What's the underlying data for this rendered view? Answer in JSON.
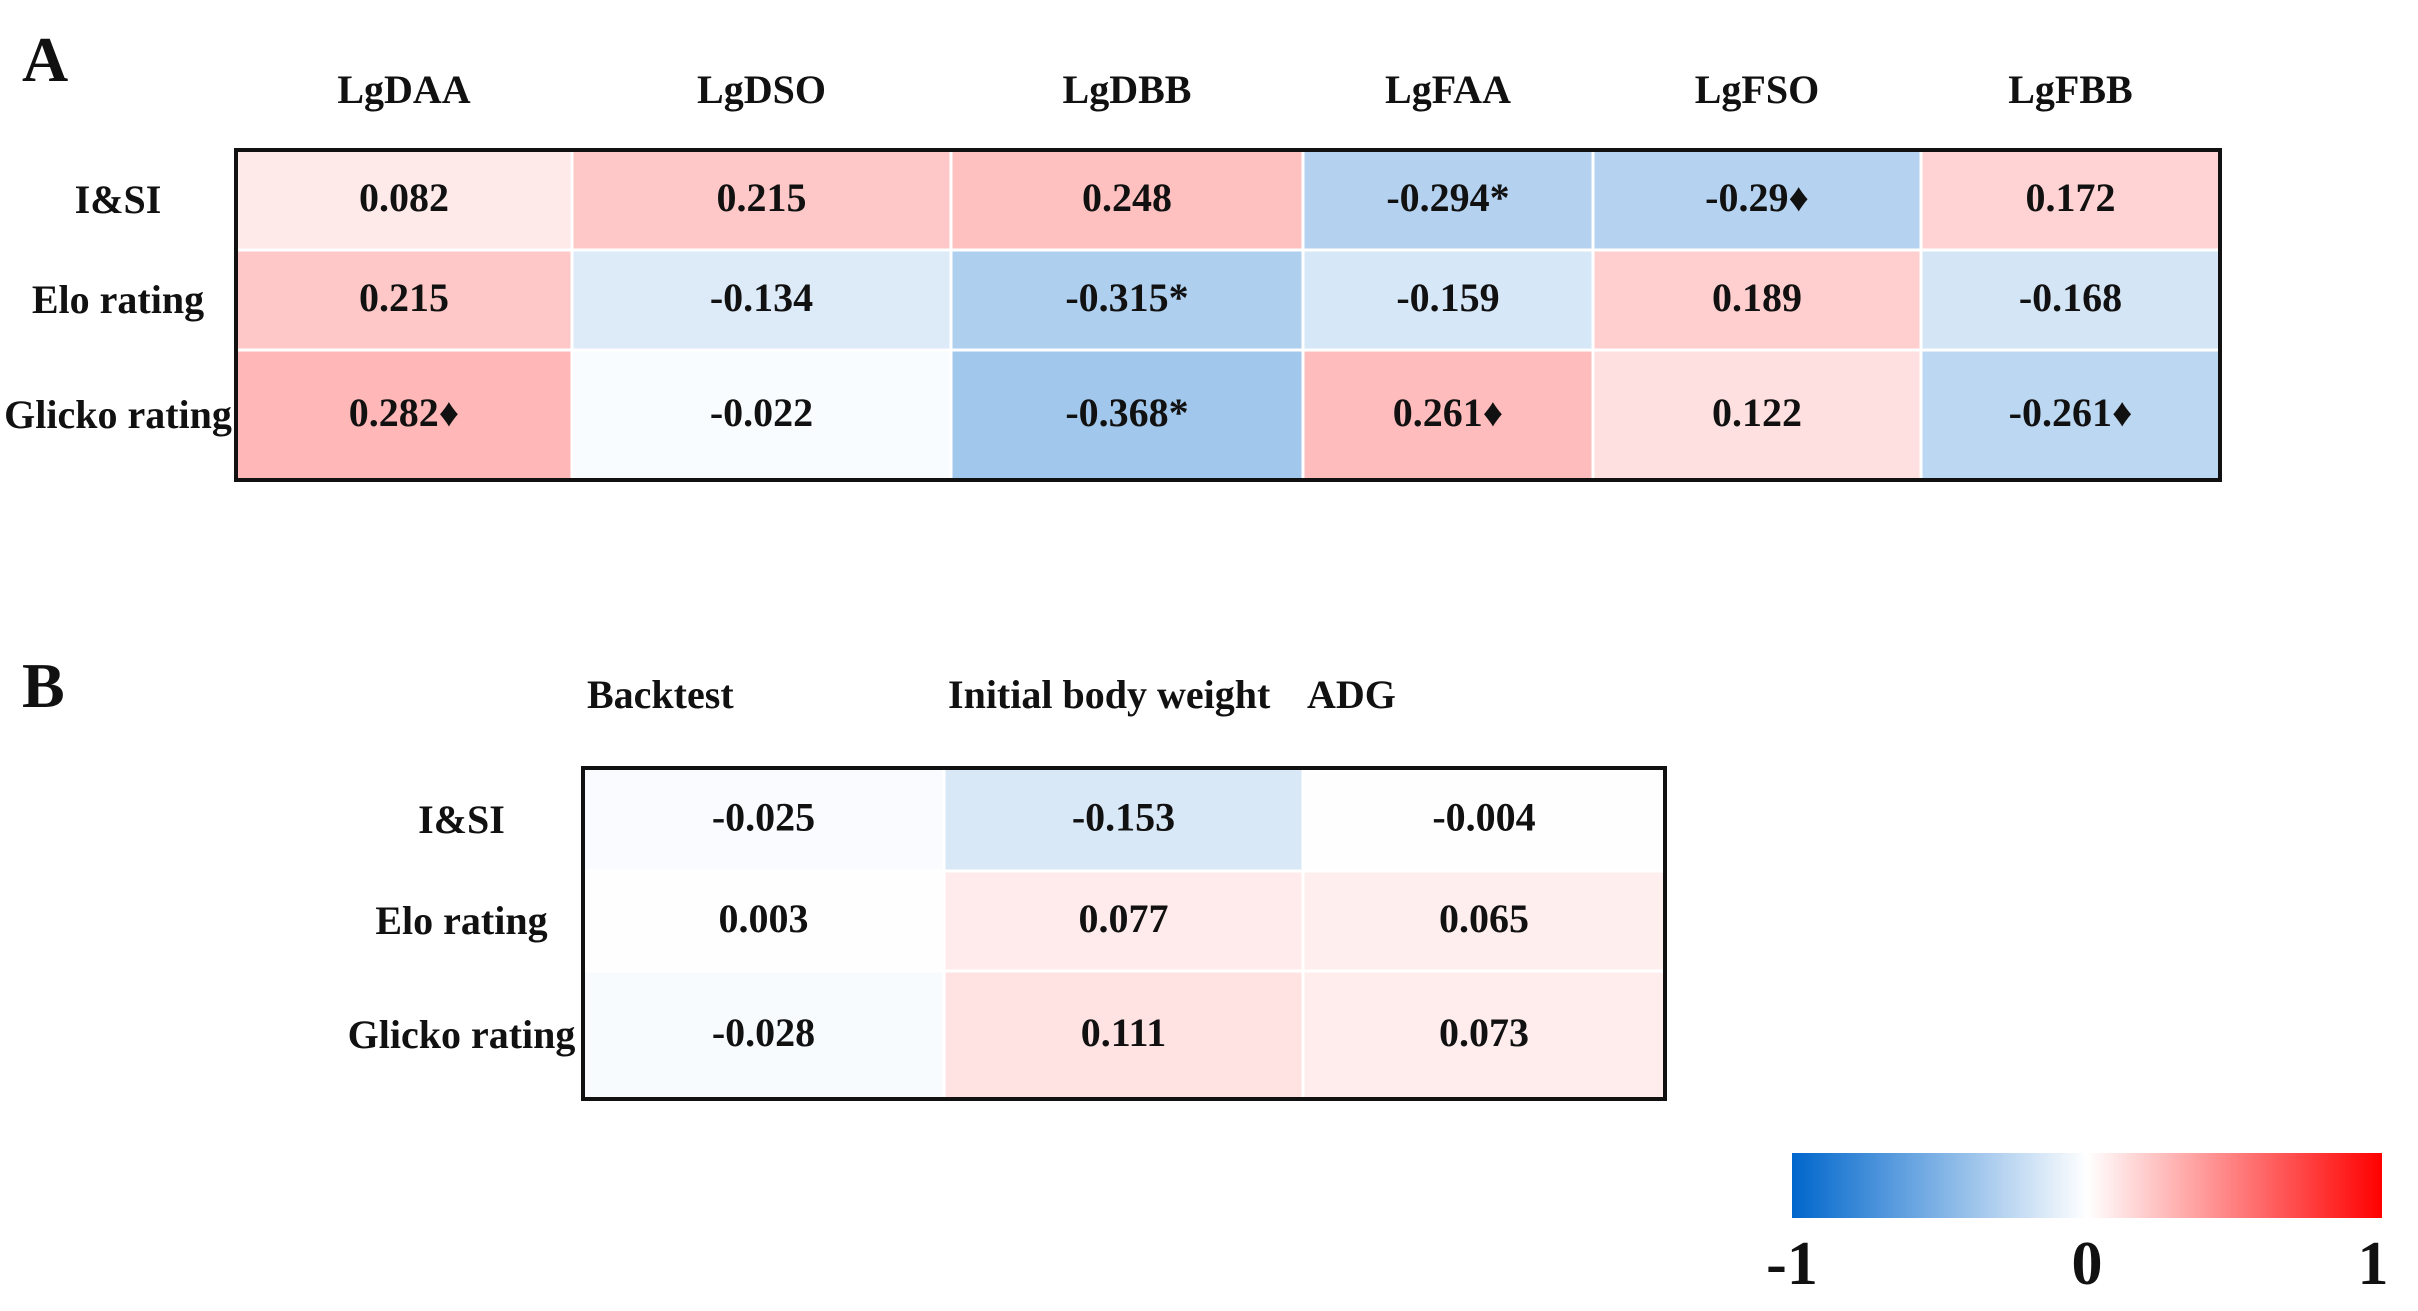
{
  "chart_data": [
    {
      "type": "heatmap",
      "panel": "A",
      "x_categories": [
        "LgDAA",
        "LgDSO",
        "LgDBB",
        "LgFAA",
        "LgFSO",
        "LgFBB"
      ],
      "y_categories": [
        "I&SI",
        "Elo rating",
        "Glicko rating"
      ],
      "values": [
        [
          0.082,
          0.215,
          0.248,
          -0.294,
          -0.29,
          0.172
        ],
        [
          0.215,
          -0.134,
          -0.315,
          -0.159,
          0.189,
          -0.168
        ],
        [
          0.282,
          -0.022,
          -0.368,
          0.261,
          0.122,
          -0.261
        ]
      ],
      "value_labels": [
        [
          "0.082",
          "0.215",
          "0.248",
          "-0.294*",
          "-0.29♦",
          "0.172"
        ],
        [
          "0.215",
          "-0.134",
          "-0.315*",
          "-0.159",
          "0.189",
          "-0.168"
        ],
        [
          "0.282♦",
          "-0.022",
          "-0.368*",
          "0.261♦",
          "0.122",
          "-0.261♦"
        ]
      ],
      "zlim": [
        -1,
        1
      ],
      "colors": [
        "#0066cc",
        "#ffffff",
        "#ff0000"
      ]
    },
    {
      "type": "heatmap",
      "panel": "B",
      "x_categories": [
        "Backtest",
        "Initial body weight",
        "ADG"
      ],
      "y_categories": [
        "I&SI",
        "Elo rating",
        "Glicko rating"
      ],
      "values": [
        [
          -0.025,
          -0.153,
          -0.004
        ],
        [
          0.003,
          0.077,
          0.065
        ],
        [
          -0.028,
          0.111,
          0.073
        ]
      ],
      "zlim": [
        -1,
        1
      ],
      "colors": [
        "#0066cc",
        "#ffffff",
        "#ff0000"
      ],
      "colorbar": {
        "ticks": [
          -1,
          0,
          1
        ]
      }
    }
  ]
}
